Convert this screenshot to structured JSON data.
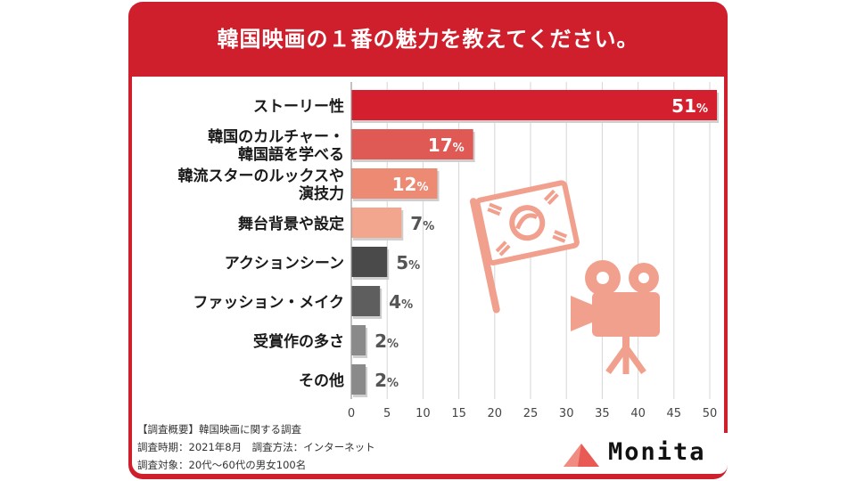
{
  "header": {
    "title": "韓国映画の１番の魅力を教えてください。"
  },
  "chart_data": {
    "type": "bar",
    "orientation": "horizontal",
    "title": "韓国映画の１番の魅力を教えてください。",
    "categories": [
      [
        "ストーリー性"
      ],
      [
        "韓国のカルチャー・",
        "韓国語を学べる"
      ],
      [
        "韓流スターのルックスや",
        "演技力"
      ],
      [
        "舞台背景や設定"
      ],
      [
        "アクションシーン"
      ],
      [
        "ファッション・メイク"
      ],
      [
        "受賞作の多さ"
      ],
      [
        "その他"
      ]
    ],
    "values": [
      51,
      17,
      12,
      7,
      5,
      4,
      2,
      2
    ],
    "value_labels": [
      "51",
      "17",
      "12",
      "7",
      "5",
      "4",
      "2",
      "2"
    ],
    "unit": "%",
    "bar_colors": [
      "#d4202e",
      "#e05a55",
      "#ec8a74",
      "#f3a68e",
      "#4a4a4a",
      "#5e5e5e",
      "#8a8a8a",
      "#8a8a8a"
    ],
    "xlim": [
      0,
      50
    ],
    "xticks": [
      0,
      5,
      10,
      15,
      20,
      25,
      30,
      35,
      40,
      45,
      50
    ],
    "grid": "vertical",
    "legend": "none"
  },
  "notes": {
    "line1_tag": "【調査概要】",
    "line1_text": "韓国映画に関する調査",
    "line2": "調査時期：2021年8月　調査方法：インターネット",
    "line3": "調査対象：20代〜60代の男女100名"
  },
  "illustration": {
    "icons": [
      "korean-flag-icon",
      "movie-camera-icon"
    ],
    "color": "#f2a08e"
  },
  "logo": {
    "text": "Monita",
    "mark_color": "#ea5a55"
  }
}
